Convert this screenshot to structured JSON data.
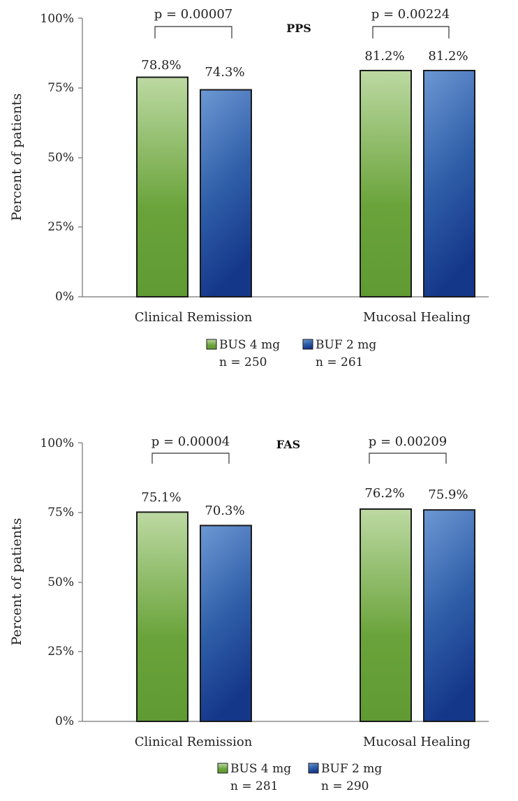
{
  "chart_data": [
    {
      "type": "bar",
      "title": "PPS",
      "ylabel": "Percent of patients",
      "ylim": [
        0,
        100
      ],
      "yticks": [
        "0%",
        "25%",
        "50%",
        "75%",
        "100%"
      ],
      "categories": [
        "Clinical Remission",
        "Mucosal Healing"
      ],
      "series": [
        {
          "name": "BUS 4 mg",
          "n_label": "n = 250",
          "values": [
            78.8,
            81.2
          ],
          "labels": [
            "78.8%",
            "81.2%"
          ],
          "color": "#6aa33a"
        },
        {
          "name": "BUF 2 mg",
          "n_label": "n = 261",
          "values": [
            74.3,
            81.2
          ],
          "labels": [
            "74.3%",
            "81.2%"
          ],
          "color": "#2f5ea8"
        }
      ],
      "p_values": [
        "p = 0.00007",
        "p = 0.00224"
      ]
    },
    {
      "type": "bar",
      "title": "FAS",
      "ylabel": "Percent of patients",
      "ylim": [
        0,
        100
      ],
      "yticks": [
        "0%",
        "25%",
        "50%",
        "75%",
        "100%"
      ],
      "categories": [
        "Clinical Remission",
        "Mucosal Healing"
      ],
      "series": [
        {
          "name": "BUS 4 mg",
          "n_label": "n = 281",
          "values": [
            75.1,
            76.2
          ],
          "labels": [
            "75.1%",
            "76.2%"
          ],
          "color": "#6aa33a"
        },
        {
          "name": "BUF 2 mg",
          "n_label": "n = 290",
          "values": [
            70.3,
            75.9
          ],
          "labels": [
            "70.3%",
            "75.9%"
          ],
          "color": "#2f5ea8"
        }
      ],
      "p_values": [
        "p = 0.00004",
        "p = 0.00209"
      ]
    }
  ]
}
